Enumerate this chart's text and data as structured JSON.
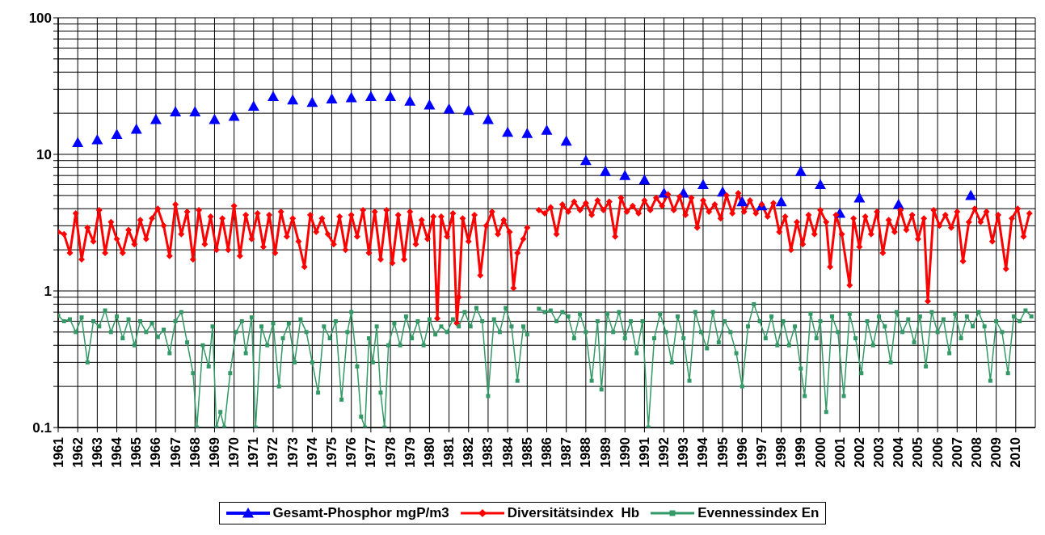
{
  "chart_data": {
    "type": "line",
    "log": "y",
    "grid": true,
    "legend": "bottom",
    "xlim": [
      1961,
      2011
    ],
    "xticks": [
      1961,
      1962,
      1963,
      1964,
      1965,
      1966,
      1967,
      1968,
      1969,
      1970,
      1971,
      1972,
      1973,
      1974,
      1975,
      1976,
      1977,
      1978,
      1979,
      1980,
      1981,
      1982,
      1983,
      1984,
      1985,
      1986,
      1987,
      1988,
      1989,
      1990,
      1991,
      1992,
      1993,
      1994,
      1995,
      1996,
      1997,
      1998,
      1999,
      2000,
      2001,
      2002,
      2003,
      2004,
      2005,
      2006,
      2007,
      2008,
      2009,
      2010
    ],
    "ylim": [
      0.1,
      100
    ],
    "yticks": [
      0.1,
      {
        "value": 0.2,
        "label": null
      },
      {
        "value": 0.3,
        "label": null
      },
      {
        "value": 0.4,
        "label": null
      },
      {
        "value": 0.5,
        "label": null
      },
      {
        "value": 0.6,
        "label": null
      },
      {
        "value": 0.7,
        "label": null
      },
      {
        "value": 0.8,
        "label": null
      },
      {
        "value": 0.9,
        "label": null
      },
      1,
      {
        "value": 2,
        "label": null
      },
      {
        "value": 3,
        "label": null
      },
      {
        "value": 4,
        "label": null
      },
      {
        "value": 5,
        "label": null
      },
      {
        "value": 6,
        "label": null
      },
      {
        "value": 7,
        "label": null
      },
      {
        "value": 8,
        "label": null
      },
      {
        "value": 9,
        "label": null
      },
      10,
      {
        "value": 20,
        "label": null
      },
      {
        "value": 30,
        "label": null
      },
      {
        "value": 40,
        "label": null
      },
      {
        "value": 50,
        "label": null
      },
      {
        "value": 60,
        "label": null
      },
      {
        "value": 70,
        "label": null
      },
      {
        "value": 80,
        "label": null
      },
      {
        "value": 90,
        "label": null
      },
      100
    ],
    "series": [
      {
        "name": "Gesamt-Phosphor mgP/m3",
        "type": "scatter",
        "marker": "triangle",
        "color": "#0000ff",
        "x": [
          1962,
          1963,
          1964,
          1965,
          1966,
          1967,
          1968,
          1969,
          1970,
          1971,
          1972,
          1973,
          1974,
          1975,
          1976,
          1977,
          1978,
          1979,
          1980,
          1981,
          1982,
          1983,
          1984,
          1985,
          1986,
          1987,
          1988,
          1989,
          1990,
          1991,
          1992,
          1993,
          1994,
          1995,
          1996,
          1997,
          1998,
          1999,
          2000,
          2001,
          2002,
          2004,
          2007.7
        ],
        "values": [
          12.2,
          12.8,
          14,
          15.3,
          18,
          20.5,
          20.5,
          18,
          19,
          22.5,
          26.5,
          25,
          24,
          25.5,
          26,
          26.5,
          26.5,
          24.5,
          23,
          21.5,
          21,
          18,
          14.5,
          14.2,
          15,
          12.5,
          9,
          7.5,
          7,
          6.5,
          5.2,
          5.2,
          6,
          5.3,
          4.5,
          4.2,
          4.5,
          7.5,
          6,
          3.7,
          4.8,
          4.3,
          5
        ]
      },
      {
        "name": "Diversitätsindex  Hb",
        "marker": "diamond",
        "line_style": "solid",
        "color": "#ff0000",
        "x": [
          1961.0,
          1961.3,
          1961.6,
          1961.9,
          1962.2,
          1962.5,
          1962.8,
          1963.1,
          1963.4,
          1963.7,
          1964.0,
          1964.3,
          1964.6,
          1964.9,
          1965.2,
          1965.5,
          1965.8,
          1966.1,
          1966.4,
          1966.7,
          1967.0,
          1967.3,
          1967.6,
          1967.9,
          1968.2,
          1968.5,
          1968.8,
          1969.1,
          1969.4,
          1969.7,
          1970.0,
          1970.3,
          1970.6,
          1970.9,
          1971.2,
          1971.5,
          1971.8,
          1972.1,
          1972.4,
          1972.7,
          1973.0,
          1973.3,
          1973.6,
          1973.9,
          1974.2,
          1974.5,
          1974.8,
          1975.1,
          1975.4,
          1975.7,
          1976.0,
          1976.3,
          1976.6,
          1976.9,
          1977.2,
          1977.5,
          1977.8,
          1978.1,
          1978.4,
          1978.7,
          1979.0,
          1979.3,
          1979.6,
          1979.9,
          1980.2,
          1980.4,
          1980.6,
          1980.9,
          1981.2,
          1981.4,
          1981.5,
          1981.7,
          1982.0,
          1982.3,
          1982.6,
          1982.9,
          1983.2,
          1983.5,
          1983.8,
          1984.1,
          1984.3,
          1984.5,
          1984.8,
          1985.0,
          1985.3,
          1985.6,
          1985.9,
          1986.2,
          1986.5,
          1986.8,
          1987.1,
          1987.4,
          1987.7,
          1988.0,
          1988.3,
          1988.6,
          1988.9,
          1989.2,
          1989.5,
          1989.8,
          1990.1,
          1990.4,
          1990.7,
          1991.0,
          1991.3,
          1991.6,
          1991.9,
          1992.2,
          1992.5,
          1992.8,
          1993.1,
          1993.4,
          1993.7,
          1994.0,
          1994.3,
          1994.6,
          1994.9,
          1995.2,
          1995.5,
          1995.8,
          1996.1,
          1996.4,
          1996.7,
          1997.0,
          1997.3,
          1997.6,
          1997.9,
          1998.2,
          1998.5,
          1998.8,
          1999.1,
          1999.4,
          1999.7,
          2000.0,
          2000.3,
          2000.5,
          2000.8,
          2001.1,
          2001.5,
          2001.7,
          2002.0,
          2002.3,
          2002.6,
          2002.9,
          2003.2,
          2003.5,
          2003.8,
          2004.1,
          2004.4,
          2004.7,
          2005.0,
          2005.3,
          2005.5,
          2005.8,
          2006.1,
          2006.4,
          2006.7,
          2007.0,
          2007.3,
          2007.6,
          2007.9,
          2008.2,
          2008.5,
          2008.8,
          2009.1,
          2009.5,
          2009.8,
          2010.1,
          2010.4,
          2010.7
        ],
        "values": [
          2.7,
          2.6,
          1.9,
          3.7,
          1.7,
          2.9,
          2.3,
          3.9,
          1.9,
          3.2,
          2.4,
          1.9,
          2.8,
          2.2,
          3.3,
          2.4,
          3.4,
          4.0,
          3.0,
          1.8,
          4.3,
          2.6,
          3.8,
          1.7,
          3.9,
          2.2,
          3.5,
          2.0,
          3.4,
          2.0,
          4.2,
          1.8,
          3.6,
          2.4,
          3.7,
          2.1,
          3.6,
          1.9,
          3.8,
          2.5,
          3.4,
          2.3,
          1.5,
          3.6,
          2.7,
          3.4,
          2.6,
          2.2,
          3.5,
          2.0,
          3.6,
          2.5,
          3.9,
          1.9,
          3.8,
          1.7,
          3.9,
          1.6,
          3.6,
          1.7,
          3.8,
          2.2,
          3.3,
          2.4,
          3.5,
          0.63,
          3.5,
          2.5,
          3.7,
          0.58,
          0.9,
          3.4,
          2.3,
          3.6,
          1.3,
          3.0,
          3.8,
          2.6,
          3.3,
          2.7,
          1.05,
          1.9,
          2.4,
          2.9,
          null,
          3.9,
          3.7,
          4.1,
          2.6,
          4.3,
          3.8,
          4.5,
          3.9,
          4.4,
          3.6,
          4.6,
          3.9,
          4.5,
          2.5,
          4.8,
          3.8,
          4.2,
          3.7,
          4.6,
          3.9,
          4.8,
          4.2,
          5.1,
          3.9,
          4.9,
          3.6,
          4.8,
          2.9,
          4.6,
          3.8,
          4.3,
          3.4,
          5.0,
          3.7,
          5.2,
          3.8,
          4.6,
          3.7,
          4.3,
          3.5,
          4.4,
          2.7,
          3.5,
          2.0,
          3.2,
          2.2,
          3.6,
          2.6,
          3.9,
          3.2,
          1.5,
          3.6,
          2.6,
          1.1,
          3.4,
          2.1,
          3.5,
          2.6,
          3.8,
          1.9,
          3.3,
          2.7,
          3.9,
          2.8,
          3.6,
          2.4,
          3.4,
          0.84,
          3.9,
          3.0,
          3.6,
          2.9,
          3.8,
          1.65,
          3.2,
          4.0,
          3.2,
          3.8,
          2.3,
          3.6,
          1.45,
          3.4,
          4.0,
          2.5,
          3.7
        ]
      },
      {
        "name": "Evennessindex En",
        "marker": "square",
        "line_style": "solid",
        "color": "#339966",
        "x": [
          1961.0,
          1961.3,
          1961.6,
          1961.9,
          1962.2,
          1962.5,
          1962.8,
          1963.1,
          1963.4,
          1963.7,
          1964.0,
          1964.3,
          1964.6,
          1964.9,
          1965.2,
          1965.5,
          1965.8,
          1966.1,
          1966.4,
          1966.7,
          1967.0,
          1967.3,
          1967.6,
          1967.9,
          1968.1,
          1968.4,
          1968.7,
          1968.9,
          1969.1,
          1969.3,
          1969.5,
          1969.8,
          1970.1,
          1970.4,
          1970.6,
          1970.9,
          1971.1,
          1971.4,
          1971.7,
          1972.0,
          1972.3,
          1972.5,
          1972.8,
          1973.1,
          1973.4,
          1973.7,
          1974.0,
          1974.3,
          1974.6,
          1974.9,
          1975.2,
          1975.5,
          1975.8,
          1976.0,
          1976.3,
          1976.5,
          1976.7,
          1976.9,
          1977.1,
          1977.3,
          1977.5,
          1977.7,
          1977.9,
          1978.2,
          1978.5,
          1978.8,
          1979.1,
          1979.4,
          1979.7,
          1980.0,
          1980.3,
          1980.6,
          1980.9,
          1981.2,
          1981.5,
          1981.8,
          1982.1,
          1982.4,
          1982.7,
          1983.0,
          1983.3,
          1983.6,
          1983.9,
          1984.2,
          1984.5,
          1984.8,
          1985.0,
          1985.3,
          1985.6,
          1985.9,
          1986.2,
          1986.5,
          1986.8,
          1987.1,
          1987.4,
          1987.7,
          1988.0,
          1988.3,
          1988.6,
          1988.8,
          1989.1,
          1989.4,
          1989.7,
          1990.0,
          1990.3,
          1990.6,
          1990.9,
          1991.2,
          1991.5,
          1991.8,
          1992.1,
          1992.4,
          1992.7,
          1993.0,
          1993.3,
          1993.6,
          1993.9,
          1994.2,
          1994.5,
          1994.8,
          1995.1,
          1995.4,
          1995.7,
          1996.0,
          1996.3,
          1996.6,
          1996.9,
          1997.2,
          1997.5,
          1997.8,
          1998.1,
          1998.4,
          1998.7,
          1999.0,
          1999.2,
          1999.5,
          1999.8,
          2000.0,
          2000.3,
          2000.6,
          2000.9,
          2001.2,
          2001.5,
          2001.8,
          2002.1,
          2002.4,
          2002.7,
          2003.0,
          2003.3,
          2003.6,
          2003.9,
          2004.2,
          2004.5,
          2004.8,
          2005.1,
          2005.4,
          2005.7,
          2006.0,
          2006.3,
          2006.6,
          2006.9,
          2007.2,
          2007.5,
          2007.8,
          2008.1,
          2008.4,
          2008.7,
          2009.0,
          2009.3,
          2009.6,
          2009.9,
          2010.2,
          2010.5,
          2010.8
        ],
        "values": [
          0.66,
          0.6,
          0.62,
          0.5,
          0.64,
          0.3,
          0.6,
          0.55,
          0.72,
          0.5,
          0.65,
          0.45,
          0.62,
          0.4,
          0.6,
          0.5,
          0.58,
          0.46,
          0.52,
          0.35,
          0.6,
          0.7,
          0.42,
          0.25,
          0.1,
          0.4,
          0.28,
          0.55,
          0.1,
          0.13,
          0.1,
          0.25,
          0.5,
          0.6,
          0.35,
          0.64,
          0.1,
          0.55,
          0.4,
          0.58,
          0.2,
          0.45,
          0.58,
          0.3,
          0.62,
          0.5,
          0.3,
          0.18,
          0.55,
          0.45,
          0.6,
          0.16,
          0.5,
          0.7,
          0.28,
          0.12,
          0.1,
          0.45,
          0.3,
          0.55,
          0.18,
          0.1,
          0.4,
          0.58,
          0.4,
          0.65,
          0.45,
          0.6,
          0.4,
          0.62,
          0.48,
          0.55,
          0.5,
          0.62,
          0.55,
          0.7,
          0.55,
          0.75,
          0.6,
          0.17,
          0.62,
          0.5,
          0.75,
          0.55,
          0.22,
          0.55,
          0.48,
          null,
          0.74,
          0.7,
          0.72,
          0.6,
          0.7,
          0.65,
          0.45,
          0.68,
          0.5,
          0.22,
          0.6,
          0.19,
          0.68,
          0.5,
          0.7,
          0.45,
          0.6,
          0.35,
          0.6,
          0.1,
          0.45,
          0.68,
          0.5,
          0.3,
          0.65,
          0.45,
          0.22,
          0.7,
          0.5,
          0.38,
          0.7,
          0.42,
          0.6,
          0.5,
          0.35,
          0.2,
          0.55,
          0.8,
          0.6,
          0.45,
          0.65,
          0.4,
          0.6,
          0.4,
          0.55,
          0.27,
          0.17,
          0.68,
          0.45,
          0.6,
          0.13,
          0.65,
          0.5,
          0.17,
          0.68,
          0.45,
          0.25,
          0.6,
          0.4,
          0.65,
          0.55,
          0.3,
          0.7,
          0.5,
          0.62,
          0.42,
          0.65,
          0.28,
          0.7,
          0.5,
          0.62,
          0.35,
          0.68,
          0.45,
          0.65,
          0.55,
          0.7,
          0.55,
          0.22,
          0.6,
          0.5,
          0.25,
          0.65,
          0.6,
          0.72,
          0.65
        ]
      }
    ]
  }
}
